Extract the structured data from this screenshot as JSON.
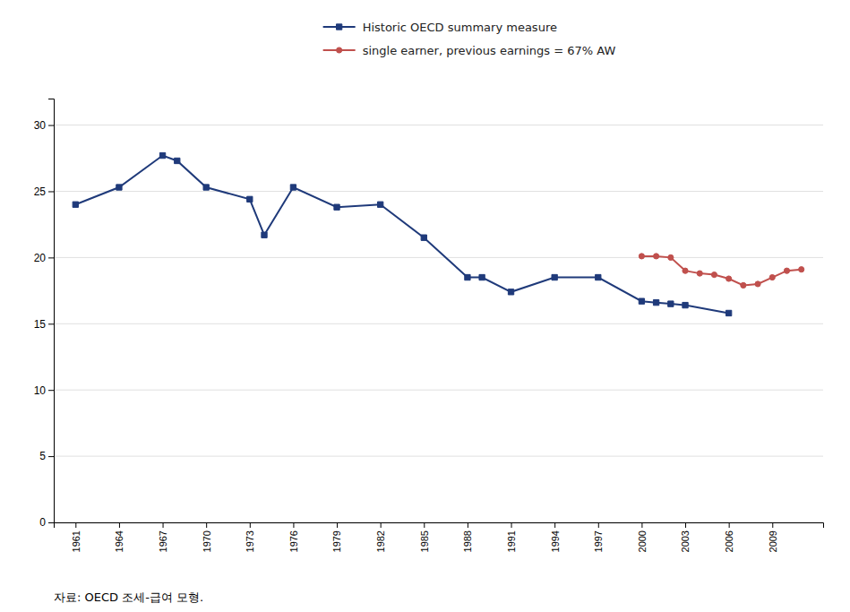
{
  "chart_data": {
    "type": "line",
    "annotations": [
      "자료: OECD 조세-급여 모형."
    ],
    "series": [
      {
        "name": "Historic OECD summary measure",
        "color": "#1F3A7A",
        "marker": "square",
        "x": [
          1961,
          1964,
          1967,
          1968,
          1970,
          1973,
          1974,
          1976,
          1979,
          1982,
          1985,
          1988,
          1989,
          1991,
          1994,
          1997,
          2000,
          2001,
          2002,
          2003,
          2006
        ],
        "values": [
          24.0,
          25.3,
          27.7,
          27.3,
          25.3,
          24.4,
          21.7,
          25.3,
          23.8,
          24.0,
          21.5,
          18.5,
          18.5,
          17.4,
          18.5,
          18.5,
          16.7,
          16.6,
          16.5,
          16.4,
          15.8
        ]
      },
      {
        "name": "single earner, previous earnings = 67% AW",
        "color": "#C0504D",
        "marker": "circle",
        "x": [
          2000,
          2001,
          2002,
          2003,
          2004,
          2005,
          2006,
          2007,
          2008,
          2009,
          2010,
          2011
        ],
        "values": [
          20.1,
          20.1,
          20.0,
          19.0,
          18.8,
          18.7,
          18.4,
          17.9,
          18.0,
          18.5,
          19.0,
          19.1
        ]
      }
    ],
    "xlim": [
      1959.5,
      2012.5
    ],
    "ylim": [
      0,
      32
    ],
    "xticks": [
      1961,
      1964,
      1967,
      1970,
      1973,
      1976,
      1979,
      1982,
      1985,
      1988,
      1991,
      1994,
      1997,
      2000,
      2003,
      2006,
      2009
    ],
    "yticks": [
      0,
      5,
      10,
      15,
      20,
      25,
      30
    ],
    "grid": true,
    "legend": "top"
  }
}
